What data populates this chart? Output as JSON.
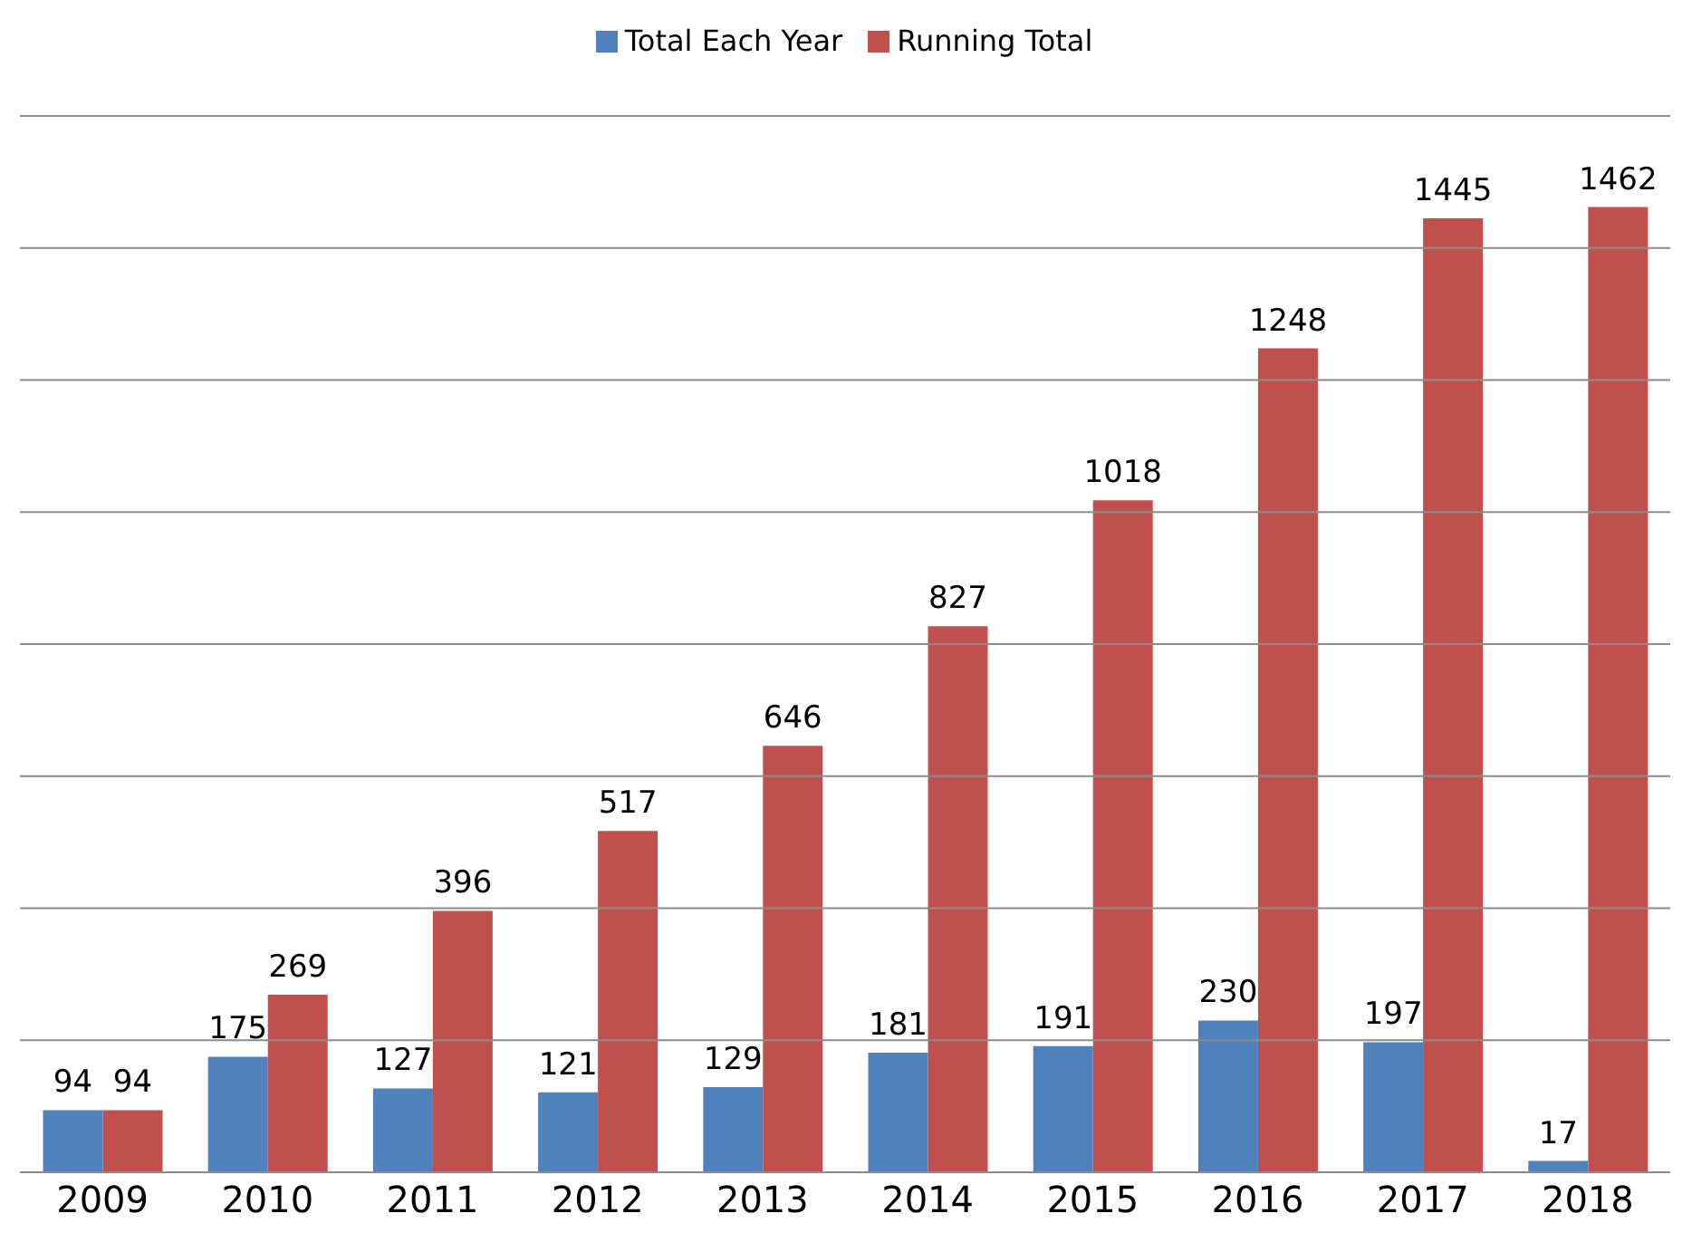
{
  "chart_data": {
    "type": "bar",
    "categories": [
      "2009",
      "2010",
      "2011",
      "2012",
      "2013",
      "2014",
      "2015",
      "2016",
      "2017",
      "2018"
    ],
    "series": [
      {
        "name": "Total Each Year",
        "color": "#4f81bd",
        "values": [
          94,
          175,
          127,
          121,
          129,
          181,
          191,
          230,
          197,
          17
        ]
      },
      {
        "name": "Running Total",
        "color": "#c0504d",
        "values": [
          94,
          269,
          396,
          517,
          646,
          827,
          1018,
          1248,
          1445,
          1462
        ]
      }
    ],
    "ylim": [
      0,
      1600
    ],
    "yticks": [
      {
        "value": 0,
        "label": null
      },
      {
        "value": 200,
        "label": null
      },
      {
        "value": 400,
        "label": null
      },
      {
        "value": 600,
        "label": null
      },
      {
        "value": 800,
        "label": null
      },
      {
        "value": 1000,
        "label": null
      },
      {
        "value": 1200,
        "label": null
      },
      {
        "value": 1400,
        "label": null
      },
      {
        "value": 1600,
        "label": null
      }
    ],
    "grid": "y",
    "legend": "top",
    "data_labels": true,
    "tick_labels": "x"
  }
}
